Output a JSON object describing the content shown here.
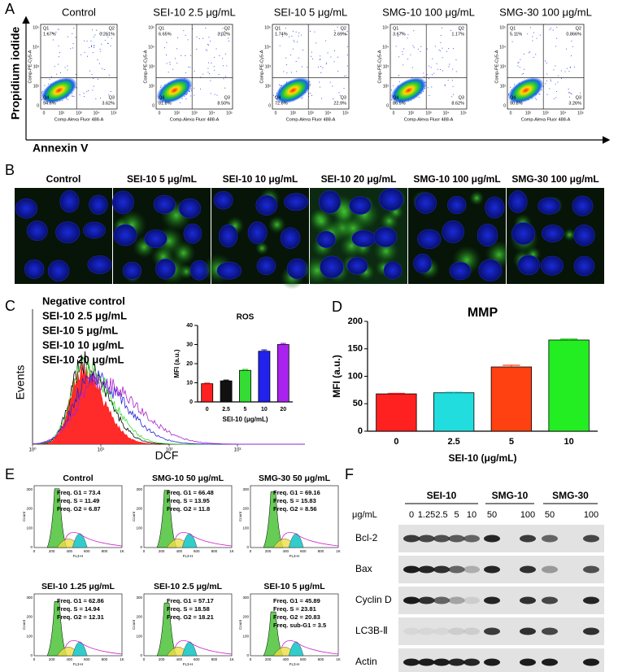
{
  "panels": {
    "A": {
      "label": "A",
      "x_label": "Annexin V",
      "y_label": "Propidium iodide",
      "plot_x_label": "Comp-Alexa Fluor 488-A",
      "plot_y_label": "Comp-PE-Cy5-A",
      "ticks": [
        "0",
        "10²",
        "10³",
        "10⁴",
        "10⁵"
      ],
      "plots": [
        {
          "title": "Control",
          "quadrants": [
            [
              "Q1",
              "1.67%"
            ],
            [
              "Q2",
              "0.261%"
            ],
            [
              "Q4",
              "94.6%"
            ],
            [
              "Q3",
              "3.62%"
            ]
          ]
        },
        {
          "title": "SEI-10 2.5 μg/mL",
          "quadrants": [
            [
              "Q1",
              "6.65%"
            ],
            [
              "Q2",
              "3.02%"
            ],
            [
              "Q4",
              "81.8%"
            ],
            [
              "Q3",
              "8.50%"
            ]
          ]
        },
        {
          "title": "SEI-10 5 μg/mL",
          "quadrants": [
            [
              "Q1",
              "1.74%"
            ],
            [
              "Q2",
              "2.69%"
            ],
            [
              "Q4",
              "72.6%"
            ],
            [
              "Q3",
              "22.9%"
            ]
          ]
        },
        {
          "title": "SMG-10 100 μg/mL",
          "quadrants": [
            [
              "Q1",
              "3.67%"
            ],
            [
              "Q2",
              "1.17%"
            ],
            [
              "Q4",
              "86.5%"
            ],
            [
              "Q3",
              "8.62%"
            ]
          ]
        },
        {
          "title": "SMG-30 100 μg/mL",
          "quadrants": [
            [
              "Q1",
              "5.11%"
            ],
            [
              "Q2",
              "0.866%"
            ],
            [
              "Q4",
              "90.8%"
            ],
            [
              "Q3",
              "3.26%"
            ]
          ]
        }
      ]
    },
    "B": {
      "label": "B",
      "titles": [
        "Control",
        "SEI-10 5 μg/mL",
        "SEI-10 10 μg/mL",
        "SEI-10 20 μg/mL",
        "SMG-10 100 μg/mL",
        "SMG-30 100 μg/mL"
      ]
    },
    "C": {
      "label": "C",
      "y_label": "Events",
      "x_label": "DCF",
      "ticks": [
        "10⁰",
        "10¹",
        "10²",
        "10³"
      ],
      "legend": [
        {
          "name": "Negative control",
          "color": "#ff2020"
        },
        {
          "name": "SEI-10 2.5 μg/mL",
          "color": "#000000"
        },
        {
          "name": "SEI-10 5 μg/mL",
          "color": "#33dd33"
        },
        {
          "name": "SEI-10 10 μg/mL",
          "color": "#2222dd"
        },
        {
          "name": "SEI-10 20 μg/mL",
          "color": "#aa22cc"
        }
      ]
    },
    "D": {
      "label": "D"
    },
    "E": {
      "label": "E",
      "x_label": "FL3-H",
      "y_label": "Count",
      "xticks": [
        "0",
        "200",
        "400",
        "600",
        "800",
        "1K"
      ],
      "yticks": [
        "0",
        "100",
        "200",
        "300"
      ],
      "plots": [
        {
          "title": "Control",
          "lines": [
            "Freq. G1 = 73.4",
            "Freq. S = 11.49",
            "Freq. G2 = 6.87"
          ]
        },
        {
          "title": "SMG-10 50 μg/mL",
          "lines": [
            "Freq. G1 = 66.48",
            "Freq. S = 13.95",
            "Freq. G2 = 11.8"
          ]
        },
        {
          "title": "SMG-30 50 μg/mL",
          "lines": [
            "Freq. G1 = 69.16",
            "Freq. S = 15.83",
            "Freq. G2 = 8.56"
          ]
        },
        {
          "title": "SEI-10 1.25 μg/mL",
          "lines": [
            "Freq. G1 = 62.86",
            "Freq. S = 14.94",
            "Freq. G2 = 12.31"
          ]
        },
        {
          "title": "SEI-10 2.5 μg/mL",
          "lines": [
            "Freq. G1 = 57.17",
            "Freq. S = 18.58",
            "Freq. G2 = 18.21"
          ]
        },
        {
          "title": "SEI-10 5 μg/mL",
          "lines": [
            "Freq. G1 = 45.89",
            "Freq. S = 23.81",
            "Freq. G2 = 20.83",
            "Freq. sub-G1 = 3.5"
          ]
        }
      ]
    },
    "F": {
      "label": "F",
      "unit": "μg/mL",
      "groups": [
        {
          "name": "SEI-10",
          "lanes": [
            "0",
            "1.25",
            "2.5",
            "5",
            "10"
          ]
        },
        {
          "name": "SMG-10",
          "lanes": [
            "50",
            "100"
          ]
        },
        {
          "name": "SMG-30",
          "lanes": [
            "50",
            "100"
          ]
        }
      ],
      "proteins": [
        "Bcl-2",
        "Bax",
        "Cyclin D",
        "LC3B-Ⅱ",
        "Actin"
      ]
    }
  },
  "chart_data": [
    {
      "type": "bar",
      "title": "ROS",
      "y_label": "MFI (a.u.)",
      "x_label": "SEI-10 (μg/mL)",
      "categories": [
        "0",
        "2.5",
        "5",
        "10",
        "20"
      ],
      "values": [
        9.5,
        11,
        16.5,
        26.5,
        30
      ],
      "errors": [
        0.3,
        0.4,
        0.5,
        0.7,
        0.6
      ],
      "colors": [
        "#ff2020",
        "#111111",
        "#33dd33",
        "#2222ee",
        "#aa22ee"
      ],
      "ylim": [
        0,
        40
      ],
      "yticks": [
        0,
        10,
        20,
        30,
        40
      ]
    },
    {
      "type": "bar",
      "title": "MMP",
      "y_label": "MFI (a.u.)",
      "x_label": "SEI-10 (μg/mL)",
      "categories": [
        "0",
        "2.5",
        "5",
        "10"
      ],
      "values": [
        68,
        70,
        117,
        166
      ],
      "errors": [
        1,
        1,
        3,
        2
      ],
      "colors": [
        "#ff2020",
        "#22dddd",
        "#ff4010",
        "#22ee22"
      ],
      "ylim": [
        0,
        200
      ],
      "yticks": [
        0,
        50,
        100,
        150,
        200
      ]
    }
  ]
}
